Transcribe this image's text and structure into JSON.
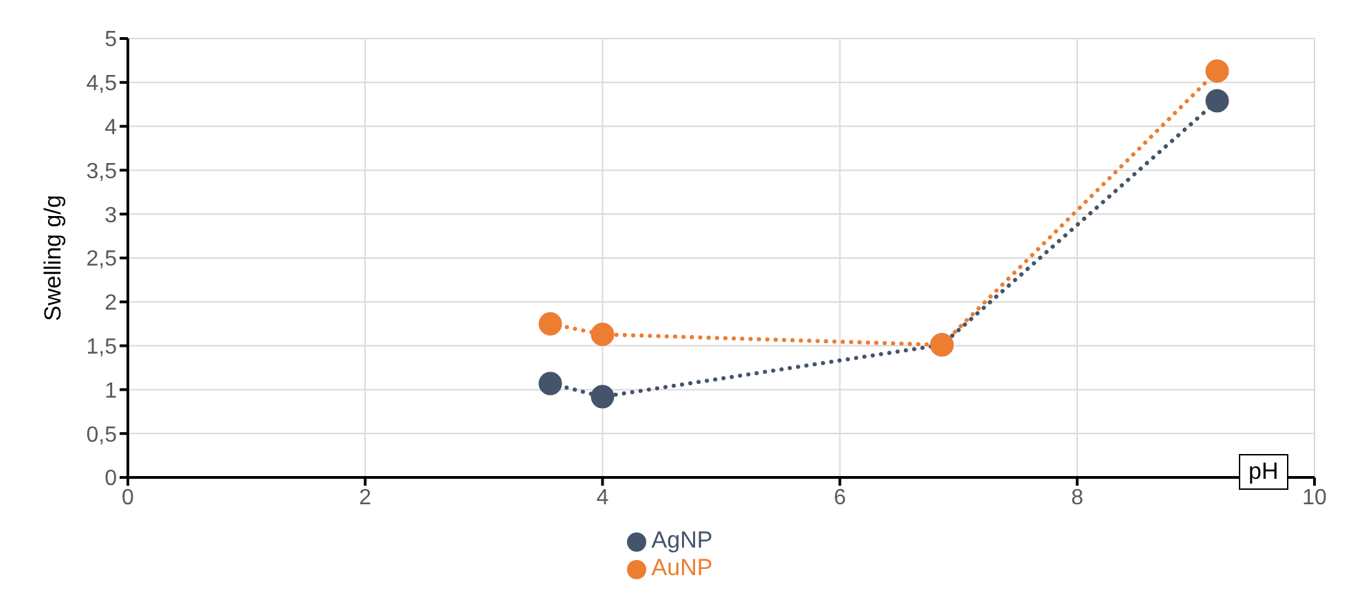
{
  "chart_data": {
    "type": "line",
    "xlabel": "pH",
    "ylabel": "Swelling g/g",
    "xlim": [
      0,
      10
    ],
    "xticks": [
      0,
      2,
      4,
      6,
      8,
      10
    ],
    "ylim": [
      0,
      5
    ],
    "yticks": [
      0,
      {
        "value": 0.5,
        "label": "0,5"
      },
      1,
      {
        "value": 1.5,
        "label": "1,5"
      },
      2,
      {
        "value": 2.5,
        "label": "2,5"
      },
      3,
      {
        "value": 3.5,
        "label": "3,5"
      },
      4,
      {
        "value": 4.5,
        "label": "4,5"
      },
      5
    ],
    "grid": true,
    "legend": "bottom",
    "marker": "circle",
    "line_style": "dotted",
    "series": [
      {
        "name": "AgNP",
        "color": "#44546a",
        "x": [
          3.56,
          4.0,
          6.86,
          9.18
        ],
        "values": [
          1.07,
          0.92,
          1.51,
          4.29
        ]
      },
      {
        "name": "AuNP",
        "color": "#ed7d31",
        "x": [
          3.56,
          4.0,
          6.86,
          9.18
        ],
        "values": [
          1.75,
          1.63,
          1.51,
          4.63
        ]
      }
    ]
  }
}
